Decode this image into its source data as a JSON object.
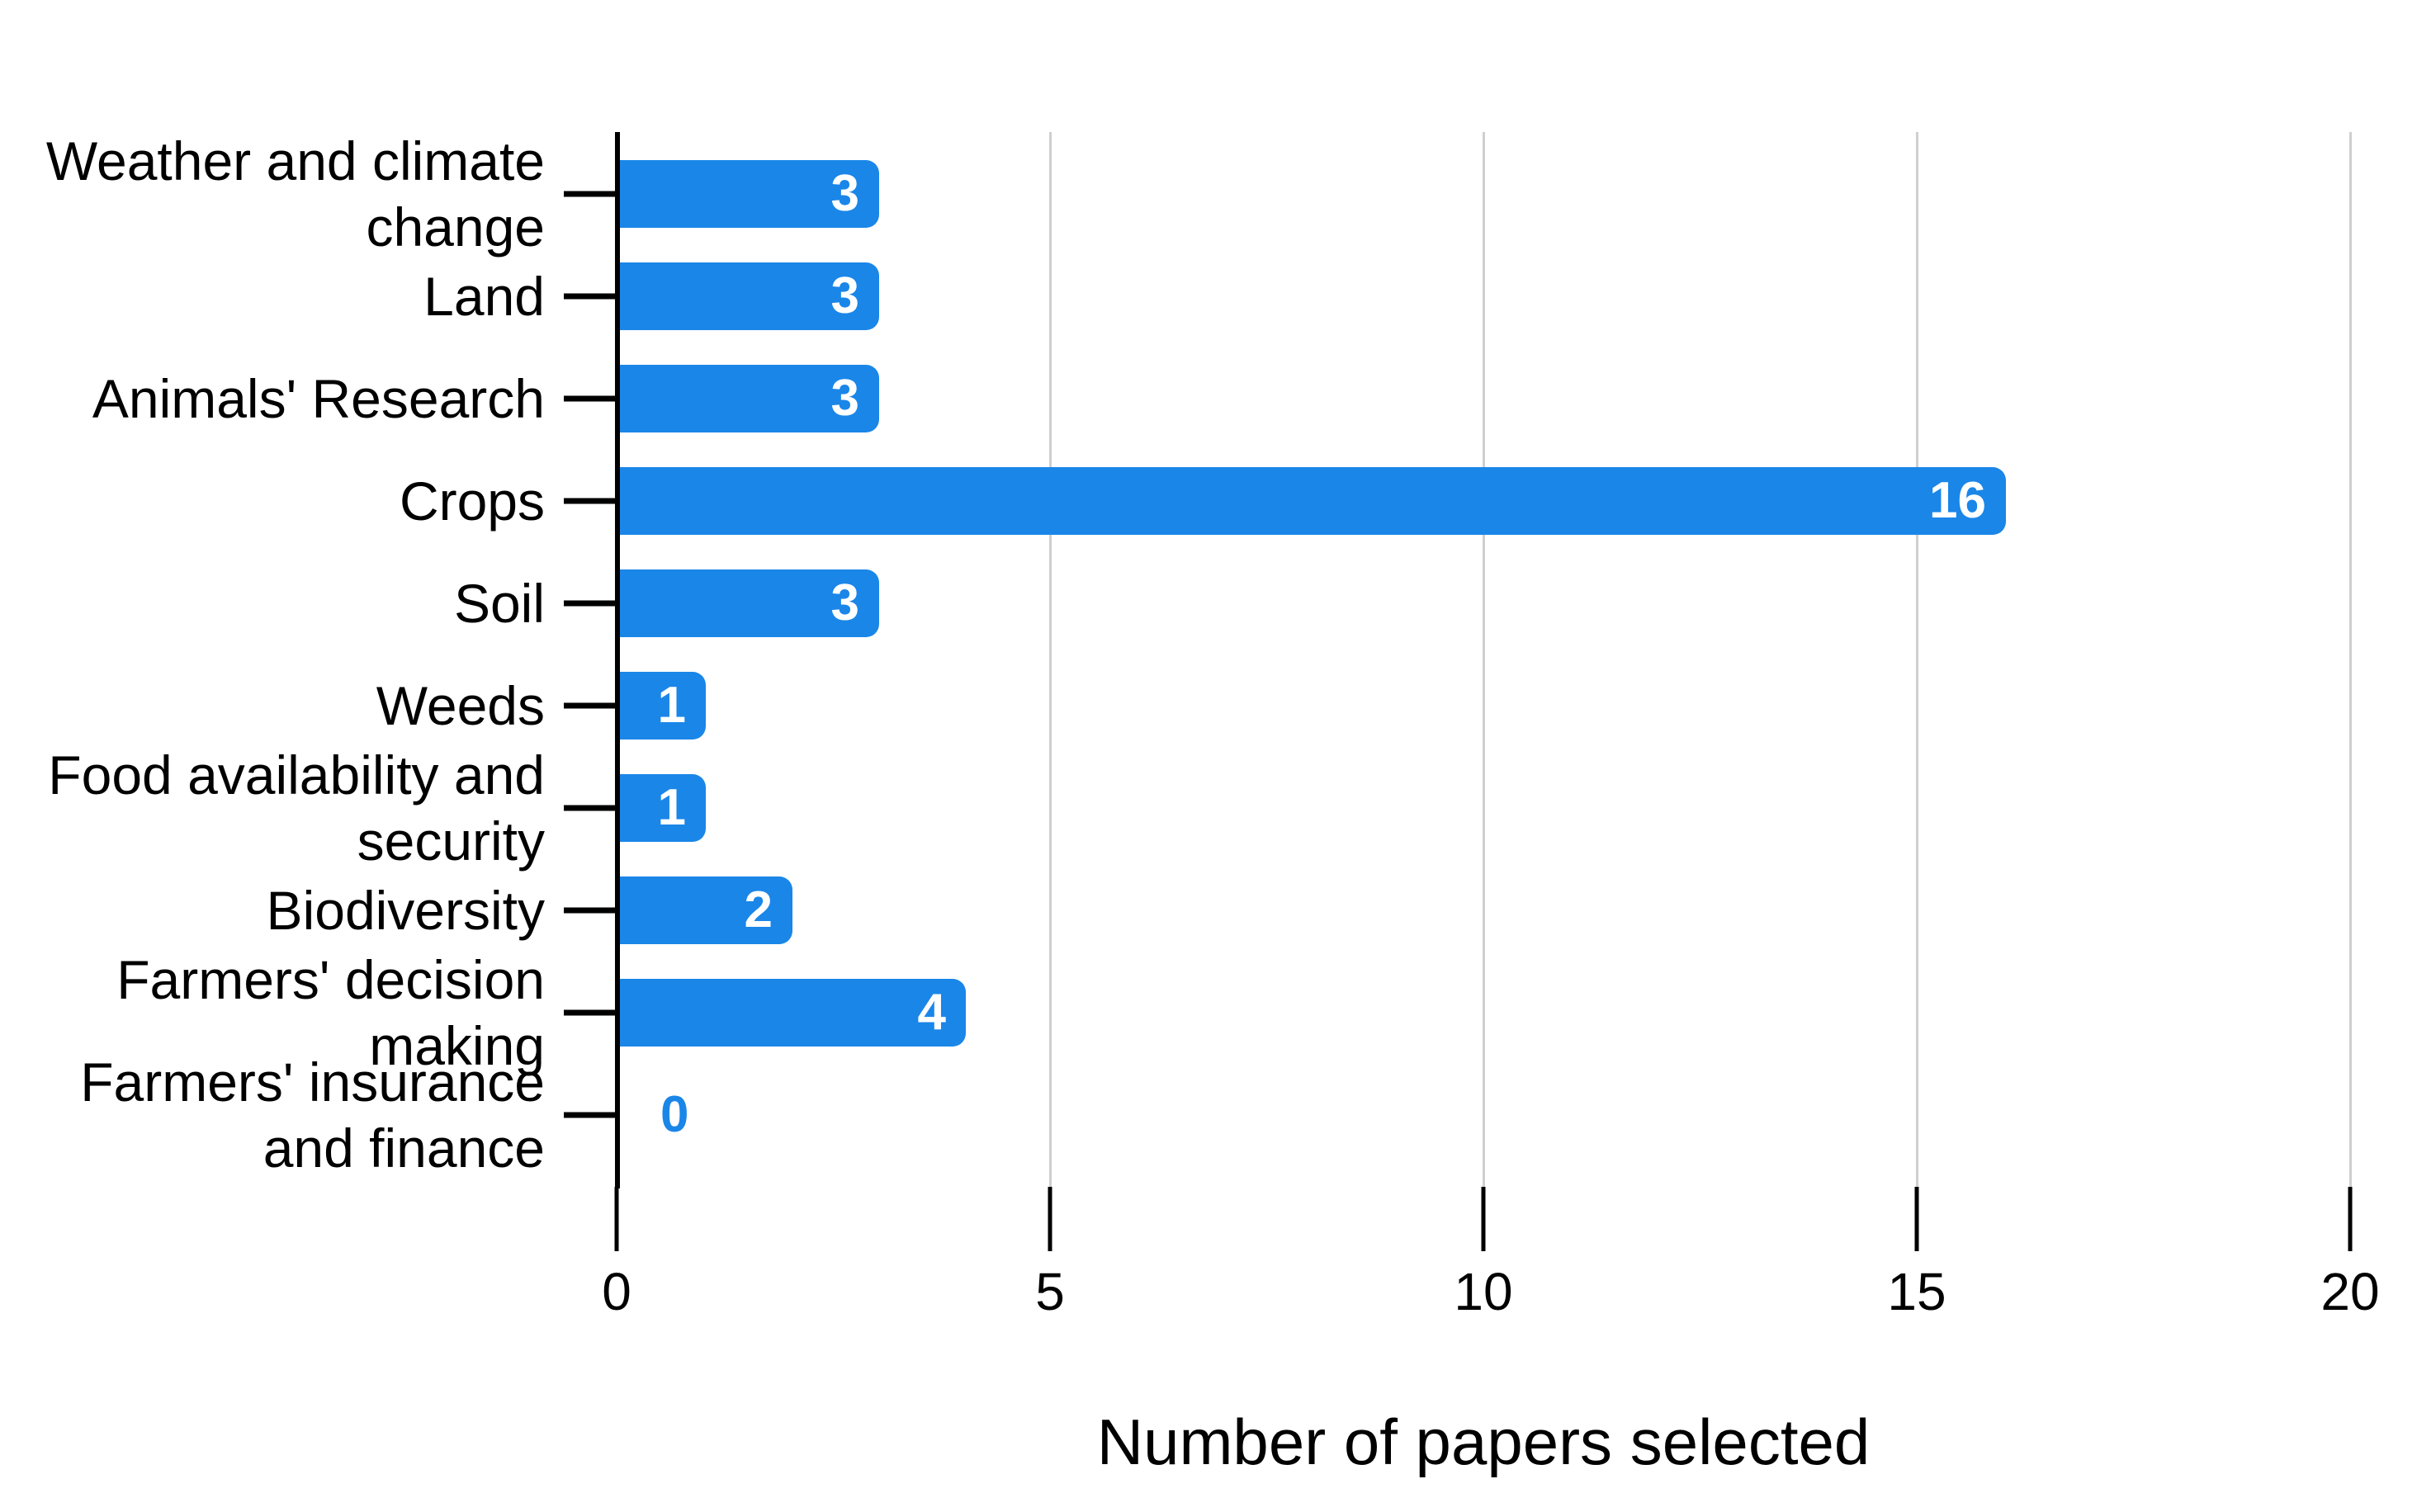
{
  "chart_data": {
    "type": "bar",
    "orientation": "horizontal",
    "title": "",
    "xlabel": "Number of papers selected",
    "ylabel": "",
    "categories": [
      "Weather and climate change",
      "Land",
      "Animals' Research",
      "Crops",
      "Soil",
      "Weeds",
      "Food availability and security",
      "Biodiversity",
      "Farmers' decision making",
      "Farmers' insurance and finance"
    ],
    "values": [
      3,
      3,
      3,
      16,
      3,
      1,
      1,
      2,
      4,
      0
    ],
    "xlim": [
      0,
      20
    ],
    "xticks": [
      0,
      5,
      10,
      15,
      20
    ],
    "grid": "vertical gridlines at x ticks",
    "legend": "none",
    "bar_labels_shown": true
  },
  "rows": [
    {
      "label": "Weather and climate\nchange",
      "value": 3,
      "value_label": "3"
    },
    {
      "label": "Land",
      "value": 3,
      "value_label": "3"
    },
    {
      "label": "Animals' Research",
      "value": 3,
      "value_label": "3"
    },
    {
      "label": "Crops",
      "value": 16,
      "value_label": "16"
    },
    {
      "label": "Soil",
      "value": 3,
      "value_label": "3"
    },
    {
      "label": "Weeds",
      "value": 1,
      "value_label": "1"
    },
    {
      "label": "Food availability and\nsecurity",
      "value": 1,
      "value_label": "1"
    },
    {
      "label": "Biodiversity",
      "value": 2,
      "value_label": "2"
    },
    {
      "label": "Farmers' decision\nmaking",
      "value": 4,
      "value_label": "4"
    },
    {
      "label": "Farmers' insurance\nand finance",
      "value": 0,
      "value_label": "0"
    }
  ],
  "axis": {
    "tick_labels": [
      "0",
      "5",
      "10",
      "15",
      "20"
    ],
    "tick_values": [
      0,
      5,
      10,
      15,
      20
    ],
    "title": "Number of papers selected"
  },
  "colors": {
    "bar": "#1a86e8",
    "bar_value_text": "#ffffff",
    "zero_value_text": "#1a86e8",
    "grid": "#cfcfcf",
    "axis": "#000000",
    "text": "#000000",
    "background": "#ffffff"
  }
}
